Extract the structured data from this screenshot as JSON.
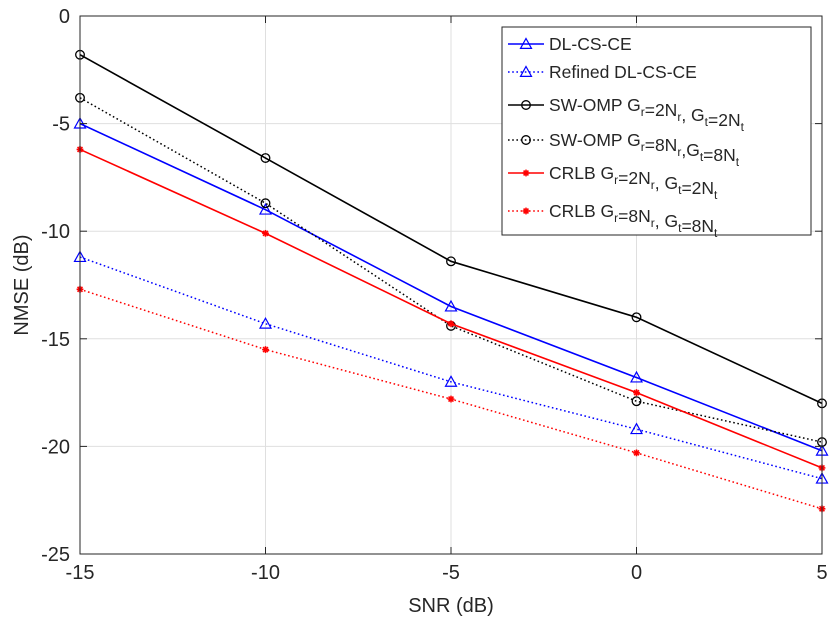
{
  "chart_data": {
    "type": "line",
    "xlabel": "SNR (dB)",
    "ylabel": "NMSE (dB)",
    "x": [
      -15,
      -10,
      -5,
      0,
      5
    ],
    "xlim": [
      -15,
      5
    ],
    "ylim": [
      -25,
      0
    ],
    "xticks": [
      -15,
      -10,
      -5,
      0,
      5
    ],
    "yticks": [
      0,
      -5,
      -10,
      -15,
      -20,
      -25
    ],
    "grid": true,
    "legend_position": "top-right",
    "series": [
      {
        "name": "DL-CS-CE",
        "legend_parts": [
          [
            "DL-CS-CE",
            ""
          ]
        ],
        "values": [
          -5.0,
          -9.0,
          -13.5,
          -16.8,
          -20.2
        ],
        "color": "#0000ff",
        "line": "solid",
        "marker": "triangle"
      },
      {
        "name": "Refined DL-CS-CE",
        "legend_parts": [
          [
            "Refined DL-CS-CE",
            ""
          ]
        ],
        "values": [
          -11.2,
          -14.3,
          -17.0,
          -19.2,
          -21.5
        ],
        "color": "#0000ff",
        "line": "dotted",
        "marker": "triangle"
      },
      {
        "name": "SW-OMP Gr=2Nr, Gt=2Nt",
        "legend_parts": [
          [
            "SW-OMP G",
            ""
          ],
          [
            "r",
            "sub"
          ],
          [
            "=2N",
            ""
          ],
          [
            "r",
            "sub"
          ],
          [
            ", G",
            ""
          ],
          [
            "t",
            "sub"
          ],
          [
            "=2N",
            ""
          ],
          [
            "t",
            "sub"
          ]
        ],
        "values": [
          -1.8,
          -6.6,
          -11.4,
          -14.0,
          -18.0
        ],
        "color": "#000000",
        "line": "solid",
        "marker": "circle"
      },
      {
        "name": "SW-OMP Gr=8Nr,Gt=8Nt",
        "legend_parts": [
          [
            "SW-OMP G",
            ""
          ],
          [
            "r",
            "sub"
          ],
          [
            "=8N",
            ""
          ],
          [
            "r",
            "sub"
          ],
          [
            ",G",
            ""
          ],
          [
            "t",
            "sub"
          ],
          [
            "=8N",
            ""
          ],
          [
            "t",
            "sub"
          ]
        ],
        "values": [
          -3.8,
          -8.7,
          -14.4,
          -17.9,
          -19.8
        ],
        "color": "#000000",
        "line": "dotted",
        "marker": "circle"
      },
      {
        "name": "CRLB Gr=2Nr, Gt=2Nt",
        "legend_parts": [
          [
            "CRLB G",
            ""
          ],
          [
            "r",
            "sub"
          ],
          [
            "=2N",
            ""
          ],
          [
            "r",
            "sub"
          ],
          [
            ", G",
            ""
          ],
          [
            "t",
            "sub"
          ],
          [
            "=2N",
            ""
          ],
          [
            "t",
            "sub"
          ]
        ],
        "values": [
          -6.2,
          -10.1,
          -14.3,
          -17.5,
          -21.0
        ],
        "color": "#ff0000",
        "line": "solid",
        "marker": "star"
      },
      {
        "name": "CRLB Gr=8Nr, Gt=8Nt",
        "legend_parts": [
          [
            "CRLB G",
            ""
          ],
          [
            "r",
            "sub"
          ],
          [
            "=8N",
            ""
          ],
          [
            "r",
            "sub"
          ],
          [
            ", G",
            ""
          ],
          [
            "t",
            "sub"
          ],
          [
            "=8N",
            ""
          ],
          [
            "t",
            "sub"
          ]
        ],
        "values": [
          -12.7,
          -15.5,
          -17.8,
          -20.3,
          -22.9
        ],
        "color": "#ff0000",
        "line": "dotted",
        "marker": "star"
      }
    ]
  }
}
